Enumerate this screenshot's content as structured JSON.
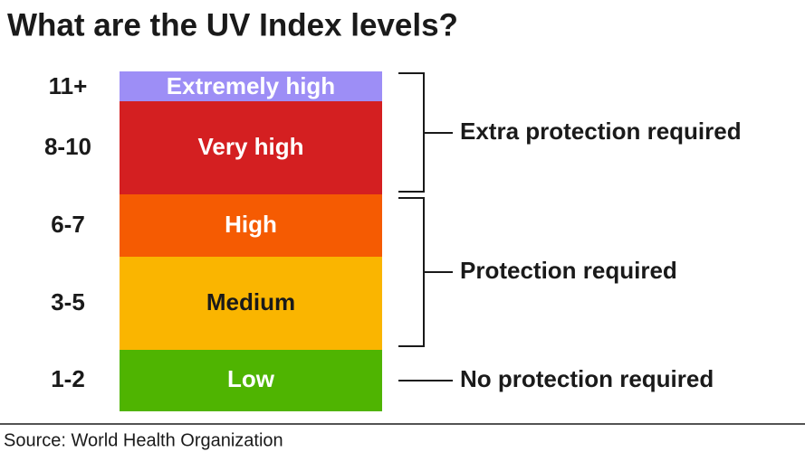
{
  "title": "What are the UV Index levels?",
  "levels": [
    {
      "range": "11+",
      "name": "Extremely high"
    },
    {
      "range": "8-10",
      "name": "Very high"
    },
    {
      "range": "6-7",
      "name": "High"
    },
    {
      "range": "3-5",
      "name": "Medium"
    },
    {
      "range": "1-2",
      "name": "Low"
    }
  ],
  "groups": [
    {
      "label": "Extra protection required"
    },
    {
      "label": "Protection required"
    },
    {
      "label": "No protection required"
    }
  ],
  "source": "Source: World Health Organization"
}
